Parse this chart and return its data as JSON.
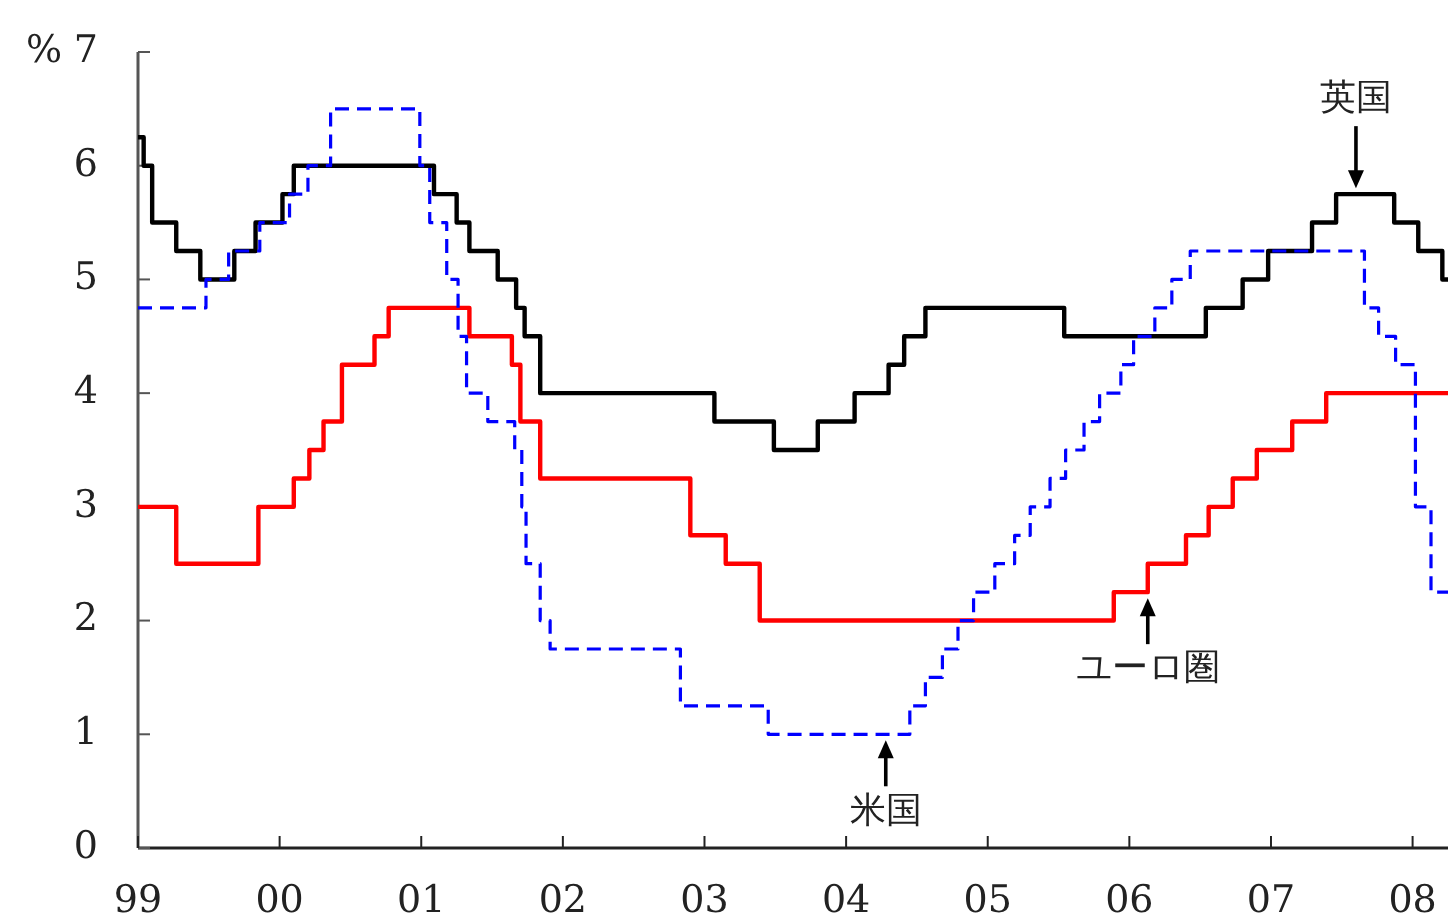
{
  "chart_data": {
    "type": "step",
    "ylabel": "%",
    "xlim": [
      1999,
      2008.25
    ],
    "ylim": [
      0,
      7
    ],
    "yticks": [
      0,
      1,
      2,
      3,
      4,
      5,
      6,
      7
    ],
    "xticks": [
      {
        "value": 1999,
        "label": "99"
      },
      {
        "value": 2000,
        "label": "00"
      },
      {
        "value": 2001,
        "label": "01"
      },
      {
        "value": 2002,
        "label": "02"
      },
      {
        "value": 2003,
        "label": "03"
      },
      {
        "value": 2004,
        "label": "04"
      },
      {
        "value": 2005,
        "label": "05"
      },
      {
        "value": 2006,
        "label": "06"
      },
      {
        "value": 2007,
        "label": "07"
      },
      {
        "value": 2008,
        "label": "08"
      }
    ],
    "grid": false,
    "series": [
      {
        "color": "#000000",
        "line_style": "solid",
        "x": [
          1999.0,
          1999.04,
          1999.1,
          1999.27,
          1999.44,
          1999.68,
          1999.83,
          2000.02,
          2000.1,
          2001.09,
          2001.25,
          2001.34,
          2001.54,
          2001.67,
          2001.73,
          2001.84,
          2003.07,
          2003.49,
          2003.8,
          2004.06,
          2004.3,
          2004.41,
          2004.56,
          2005.54,
          2006.54,
          2006.8,
          2006.98,
          2007.29,
          2007.46,
          2007.87,
          2008.04,
          2008.21,
          2008.25
        ],
        "values": [
          6.25,
          6.0,
          5.5,
          5.25,
          5.0,
          5.25,
          5.5,
          5.75,
          6.0,
          5.75,
          5.5,
          5.25,
          5.0,
          4.75,
          4.5,
          4.0,
          3.75,
          3.5,
          3.75,
          4.0,
          4.25,
          4.5,
          4.75,
          4.5,
          4.75,
          5.0,
          5.25,
          5.5,
          5.75,
          5.5,
          5.25,
          5.0,
          5.0
        ]
      },
      {
        "color": "#ff0000",
        "line_style": "solid",
        "x": [
          1999.0,
          1999.27,
          1999.85,
          2000.1,
          2000.21,
          2000.31,
          2000.44,
          2000.67,
          2000.77,
          2001.34,
          2001.64,
          2001.7,
          2001.84,
          2002.9,
          2003.15,
          2003.39,
          2005.89,
          2006.13,
          2006.4,
          2006.56,
          2006.73,
          2006.9,
          2007.15,
          2007.39,
          2008.25
        ],
        "values": [
          3.0,
          2.5,
          3.0,
          3.25,
          3.5,
          3.75,
          4.25,
          4.5,
          4.75,
          4.5,
          4.25,
          3.75,
          3.25,
          2.75,
          2.5,
          2.0,
          2.25,
          2.5,
          2.75,
          3.0,
          3.25,
          3.5,
          3.75,
          4.0,
          4.0
        ]
      },
      {
        "color": "#0000ff",
        "line_style": "dashed",
        "x": [
          1999.0,
          1999.48,
          1999.64,
          1999.86,
          2000.07,
          2000.2,
          2000.36,
          2000.99,
          2001.06,
          2001.18,
          2001.26,
          2001.32,
          2001.47,
          2001.66,
          2001.71,
          2001.74,
          2001.84,
          2001.91,
          2002.83,
          2003.45,
          2004.45,
          2004.56,
          2004.68,
          2004.79,
          2004.9,
          2005.05,
          2005.19,
          2005.3,
          2005.44,
          2005.55,
          2005.68,
          2005.79,
          2005.94,
          2006.03,
          2006.18,
          2006.3,
          2006.43,
          2007.66,
          2007.76,
          2007.88,
          2008.02,
          2008.13,
          2008.25
        ],
        "values": [
          4.75,
          5.0,
          5.25,
          5.5,
          5.75,
          6.0,
          6.5,
          6.0,
          5.5,
          5.0,
          4.5,
          4.0,
          3.75,
          3.5,
          3.0,
          2.5,
          2.0,
          1.75,
          1.25,
          1.0,
          1.25,
          1.5,
          1.75,
          2.0,
          2.25,
          2.5,
          2.75,
          3.0,
          3.25,
          3.5,
          3.75,
          4.0,
          4.25,
          4.5,
          4.75,
          5.0,
          5.25,
          4.75,
          4.5,
          4.25,
          3.0,
          2.25,
          2.25
        ]
      }
    ],
    "annotations": [
      {
        "text": "英国",
        "x": 2007.6,
        "y": 5.75
      },
      {
        "text": "米国",
        "x": 2004.28,
        "y": 1.0
      },
      {
        "text": "ユーロ圏",
        "x": 2006.13,
        "y": 2.25
      }
    ]
  }
}
